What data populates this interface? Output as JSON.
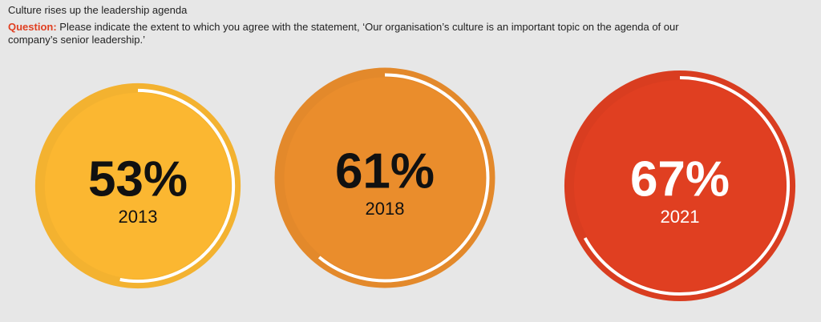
{
  "chart_data": {
    "type": "radial",
    "title": "Culture rises up the leadership agenda",
    "question_label": "Question:",
    "question": "Please indicate the extent to which you agree with the statement, ‘Our organisation’s culture is an important topic on the agenda of our company’s senior leadership.’",
    "categories": [
      "2013",
      "2018",
      "2021"
    ],
    "values": [
      53,
      61,
      67
    ],
    "value_labels": [
      "53%",
      "61%",
      "67%"
    ],
    "colors": [
      "#fbb731",
      "#ea8d2c",
      "#e03f21"
    ],
    "text_colors": [
      "#111111",
      "#111111",
      "#ffffff"
    ]
  }
}
